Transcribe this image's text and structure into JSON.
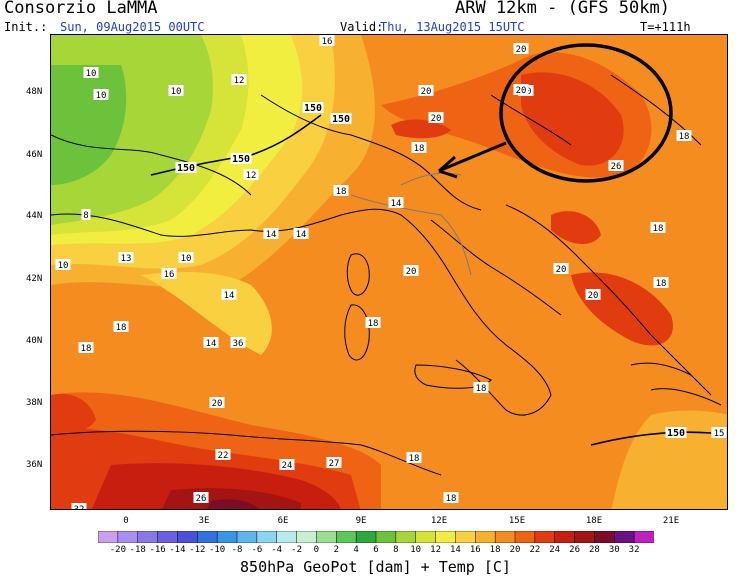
{
  "header": {
    "title": "Consorzio LaMMA",
    "model": "ARW 12km - (GFS 50km)",
    "init_label": "Init.:",
    "init_value": "Sun, 09Aug2015 00UTC",
    "valid_label": "Valid:",
    "valid_value": "Thu, 13Aug2015 15UTC",
    "lead_time": "T=+111h"
  },
  "axes": {
    "lat_labels": [
      "48N",
      "46N",
      "44N",
      "42N",
      "40N",
      "38N",
      "36N"
    ],
    "lon_labels": [
      "0",
      "3E",
      "6E",
      "9E",
      "12E",
      "15E",
      "18E",
      "21E"
    ]
  },
  "colorbar": {
    "labels": [
      "-20",
      "-18",
      "-16",
      "-14",
      "-12",
      "-10",
      "-8",
      "-6",
      "-4",
      "-2",
      "0",
      "2",
      "4",
      "6",
      "8",
      "10",
      "12",
      "14",
      "16",
      "18",
      "20",
      "22",
      "24",
      "26",
      "28",
      "30",
      "32"
    ],
    "colors": [
      "#c9a0f0",
      "#a890f0",
      "#8a78e8",
      "#6a60e0",
      "#4a50d8",
      "#3470e0",
      "#3a94e8",
      "#5fb6ee",
      "#8cd4f2",
      "#b6ecf0",
      "#c8f0d0",
      "#98e090",
      "#5cc85a",
      "#2ea83a",
      "#6cc23a",
      "#a6d638",
      "#d6e43a",
      "#f2ee40",
      "#f8d040",
      "#f8b030",
      "#f48c20",
      "#ee6414",
      "#e03c10",
      "#c81e10",
      "#a41412",
      "#7c0c28",
      "#6a1088",
      "#c020c0"
    ]
  },
  "map": {
    "temperature_labels": [
      "10",
      "10",
      "10",
      "12",
      "16",
      "20",
      "20",
      "20",
      "20",
      "18",
      "150",
      "150",
      "150",
      "150",
      "12",
      "8",
      "14",
      "14",
      "14",
      "18",
      "10",
      "16",
      "13",
      "10",
      "14",
      "20",
      "20",
      "20",
      "18",
      "18",
      "18",
      "18",
      "18",
      "14",
      "18",
      "36",
      "18",
      "20",
      "20",
      "22",
      "26",
      "24",
      "27",
      "18",
      "18",
      "26",
      "150",
      "15",
      "32"
    ],
    "geopotential_label": "150",
    "annotation": "ellipse-with-arrow"
  },
  "footer": {
    "caption": "850hPa GeoPot [dam] + Temp [C]"
  }
}
